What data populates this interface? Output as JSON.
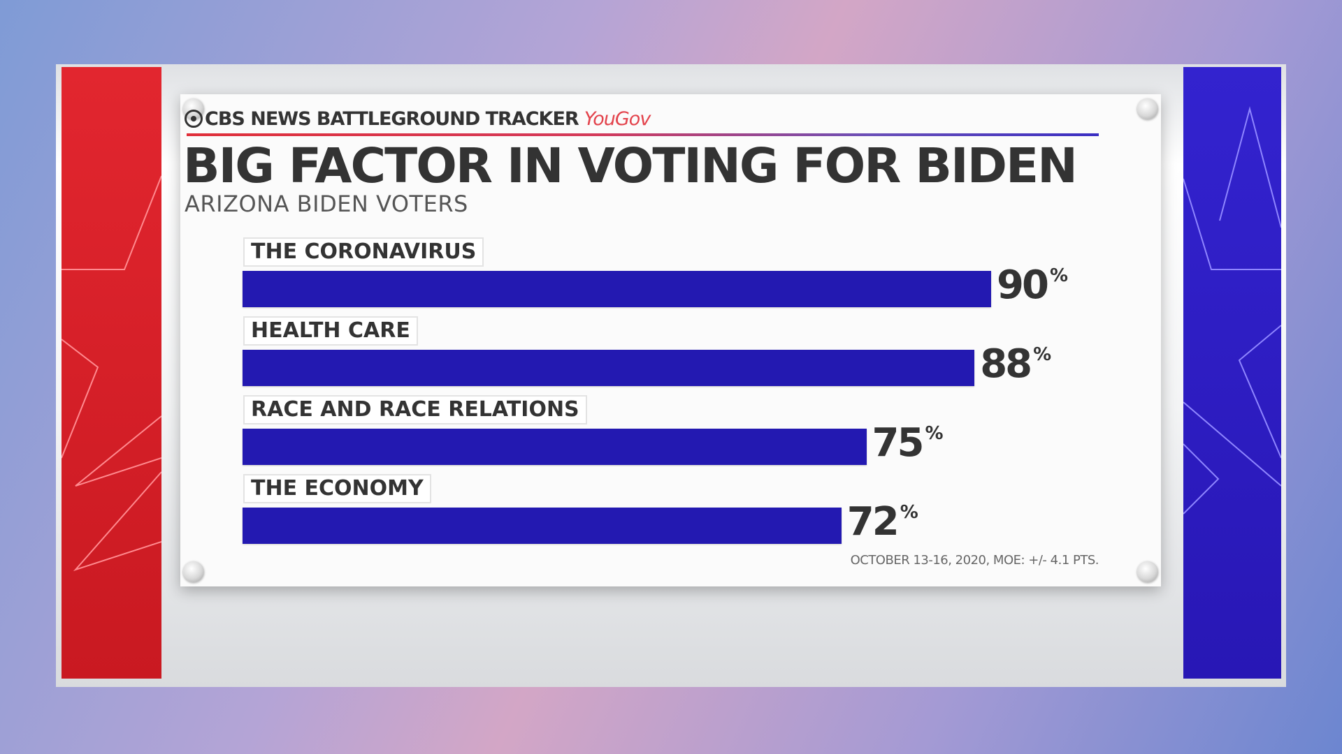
{
  "source": {
    "brand": "CBS NEWS BATTLEGROUND TRACKER",
    "partner": "YouGov"
  },
  "colors": {
    "bar": "#2319b1",
    "accent_red": "#e0303a",
    "accent_blue": "#2817b5"
  },
  "chart_data": {
    "type": "bar",
    "orientation": "horizontal",
    "title": "BIG FACTOR IN VOTING FOR BIDEN",
    "subtitle": "ARIZONA BIDEN VOTERS",
    "categories": [
      "THE CORONAVIRUS",
      "HEALTH CARE",
      "RACE AND RACE RELATIONS",
      "THE ECONOMY"
    ],
    "values": [
      90,
      88,
      75,
      72
    ],
    "value_suffix": "%",
    "xlim": [
      0,
      100
    ],
    "grid": false,
    "legend": "none"
  },
  "footnote": "OCTOBER 13-16, 2020, MOE: +/- 4.1 PTS."
}
